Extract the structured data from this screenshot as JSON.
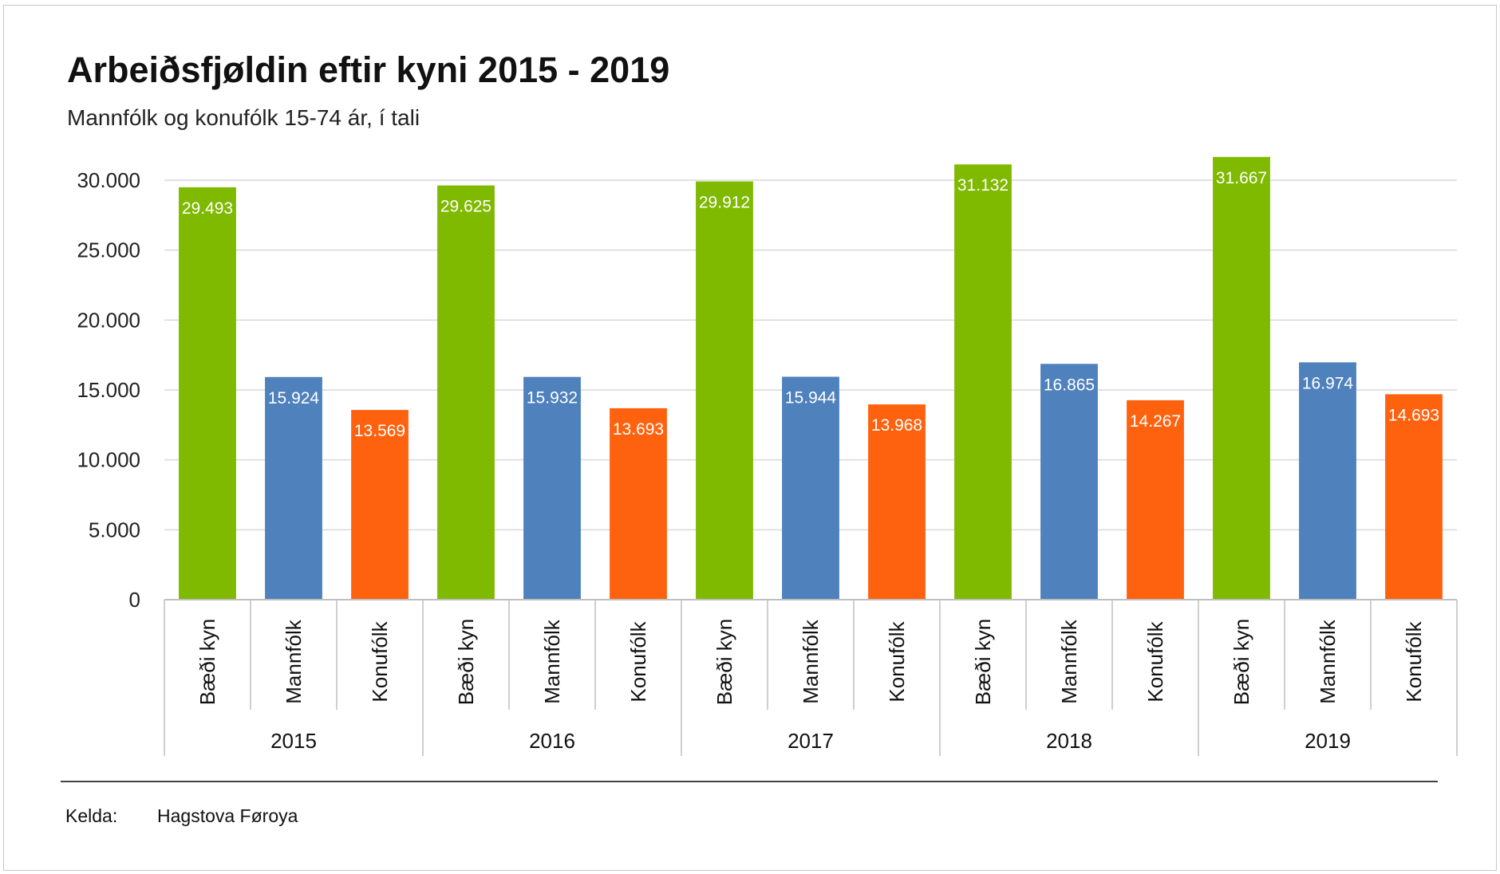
{
  "title": "Arbeiðsfjøldin eftir kyni 2015 - 2019",
  "subtitle": "Mannfólk og konufólk 15-74 ár, í tali",
  "source": {
    "label": "Kelda:",
    "value": "Hagstova Føroya"
  },
  "colors": {
    "baedi": "#7fb900",
    "mann": "#4f81bd",
    "konu": "#ff620f",
    "grid": "#d9d9d9",
    "axis": "#bfbfbf"
  },
  "chart_data": {
    "type": "bar",
    "title": "Arbeiðsfjøldin eftir kyni 2015 - 2019",
    "xlabel": "",
    "ylabel": "",
    "ylim": [
      0,
      30000
    ],
    "yticks": [
      0,
      5000,
      10000,
      15000,
      20000,
      25000,
      30000
    ],
    "ytick_labels": [
      "0",
      "5.000",
      "10.000",
      "15.000",
      "20.000",
      "25.000",
      "30.000"
    ],
    "grid": true,
    "legend": "none",
    "groups": [
      {
        "year": "2015",
        "bars": [
          {
            "label": "Bæði kyn",
            "value": 29493,
            "display": "29.493",
            "series": "baedi"
          },
          {
            "label": "Mannfólk",
            "value": 15924,
            "display": "15.924",
            "series": "mann"
          },
          {
            "label": "Konufólk",
            "value": 13569,
            "display": "13.569",
            "series": "konu"
          }
        ]
      },
      {
        "year": "2016",
        "bars": [
          {
            "label": "Bæði kyn",
            "value": 29625,
            "display": "29.625",
            "series": "baedi"
          },
          {
            "label": "Mannfólk",
            "value": 15932,
            "display": "15.932",
            "series": "mann"
          },
          {
            "label": "Konufólk",
            "value": 13693,
            "display": "13.693",
            "series": "konu"
          }
        ]
      },
      {
        "year": "2017",
        "bars": [
          {
            "label": "Bæði kyn",
            "value": 29912,
            "display": "29.912",
            "series": "baedi"
          },
          {
            "label": "Mannfólk",
            "value": 15944,
            "display": "15.944",
            "series": "mann"
          },
          {
            "label": "Konufólk",
            "value": 13968,
            "display": "13.968",
            "series": "konu"
          }
        ]
      },
      {
        "year": "2018",
        "bars": [
          {
            "label": "Bæði kyn",
            "value": 31132,
            "display": "31.132",
            "series": "baedi"
          },
          {
            "label": "Mannfólk",
            "value": 16865,
            "display": "16.865",
            "series": "mann"
          },
          {
            "label": "Konufólk",
            "value": 14267,
            "display": "14.267",
            "series": "konu"
          }
        ]
      },
      {
        "year": "2019",
        "bars": [
          {
            "label": "Bæði kyn",
            "value": 31667,
            "display": "31.667",
            "series": "baedi"
          },
          {
            "label": "Mannfólk",
            "value": 16974,
            "display": "16.974",
            "series": "mann"
          },
          {
            "label": "Konufólk",
            "value": 14693,
            "display": "14.693",
            "series": "konu"
          }
        ]
      }
    ]
  }
}
